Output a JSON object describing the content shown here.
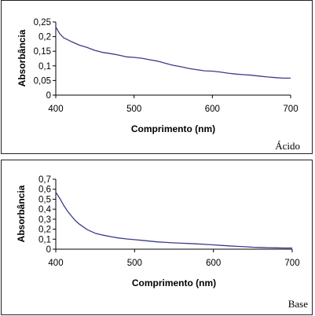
{
  "chart_data": [
    {
      "type": "line",
      "tag": "Ácido",
      "xlabel": "Comprimento (nm)",
      "ylabel": "Absorbância",
      "xlim": [
        400,
        700
      ],
      "ylim": [
        0,
        0.25
      ],
      "xticks": [
        400,
        500,
        600,
        700
      ],
      "xtick_labels": [
        "400",
        "500",
        "600",
        "700"
      ],
      "yticks": [
        0,
        0.05,
        0.1,
        0.15,
        0.2,
        0.25
      ],
      "ytick_labels": [
        "0",
        "0,05",
        "0,1",
        "0,15",
        "0,2",
        "0,25"
      ],
      "grid": false,
      "line_color": "#3b3b8c",
      "x": [
        400,
        405,
        410,
        420,
        430,
        440,
        450,
        460,
        470,
        480,
        490,
        500,
        510,
        520,
        530,
        540,
        550,
        560,
        570,
        580,
        590,
        600,
        610,
        620,
        630,
        640,
        650,
        660,
        670,
        680,
        690,
        700
      ],
      "y": [
        0.233,
        0.21,
        0.196,
        0.183,
        0.171,
        0.163,
        0.153,
        0.146,
        0.142,
        0.137,
        0.131,
        0.129,
        0.126,
        0.121,
        0.116,
        0.109,
        0.102,
        0.097,
        0.091,
        0.087,
        0.083,
        0.082,
        0.079,
        0.075,
        0.072,
        0.07,
        0.068,
        0.065,
        0.062,
        0.06,
        0.058,
        0.058
      ]
    },
    {
      "type": "line",
      "tag": "Base",
      "xlabel": "Comprimento (nm)",
      "ylabel": "Absorbância",
      "xlim": [
        400,
        700
      ],
      "ylim": [
        0,
        0.7
      ],
      "xticks": [
        400,
        500,
        600,
        700
      ],
      "xtick_labels": [
        "400",
        "500",
        "600",
        "700"
      ],
      "yticks": [
        0,
        0.1,
        0.2,
        0.3,
        0.4,
        0.5,
        0.6,
        0.7
      ],
      "ytick_labels": [
        "0",
        "0,1",
        "0,2",
        "0,3",
        "0,4",
        "0,5",
        "0,6",
        "0,7"
      ],
      "grid": false,
      "line_color": "#3b3b8c",
      "x": [
        400,
        405,
        410,
        415,
        420,
        425,
        430,
        440,
        450,
        460,
        470,
        480,
        490,
        500,
        510,
        520,
        530,
        540,
        550,
        560,
        570,
        580,
        590,
        600,
        610,
        620,
        630,
        640,
        650,
        660,
        670,
        680,
        690,
        700
      ],
      "y": [
        0.57,
        0.51,
        0.44,
        0.38,
        0.33,
        0.285,
        0.25,
        0.195,
        0.16,
        0.14,
        0.125,
        0.112,
        0.102,
        0.095,
        0.088,
        0.08,
        0.072,
        0.068,
        0.063,
        0.06,
        0.057,
        0.053,
        0.048,
        0.043,
        0.038,
        0.033,
        0.028,
        0.024,
        0.02,
        0.017,
        0.015,
        0.013,
        0.012,
        0.012
      ]
    }
  ]
}
